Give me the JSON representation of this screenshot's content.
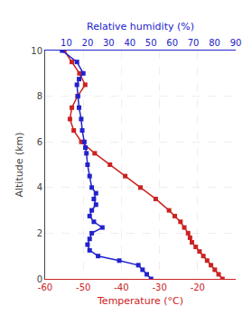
{
  "chart_data": {
    "type": "line",
    "xlabel": "Temperature (°C)",
    "x2label": "Relative humidity (%)",
    "ylabel": "Altitude (km)",
    "xlim": [
      -60,
      -10
    ],
    "xticks": [
      -60,
      -50,
      -40,
      -30,
      -20
    ],
    "x2lim": [
      0,
      90
    ],
    "x2ticks": [
      10,
      20,
      30,
      40,
      50,
      60,
      70,
      80,
      90
    ],
    "ylim": [
      0,
      10
    ],
    "yticks": [
      0,
      2,
      4,
      6,
      8,
      10
    ],
    "grid": true,
    "series": [
      {
        "color": "#2222cc",
        "marker": "square",
        "axis": "x2",
        "x": [
          50,
          48,
          46,
          44,
          35,
          25,
          21,
          20,
          21,
          22,
          27,
          23,
          21,
          22,
          24,
          23,
          24,
          22,
          21,
          20,
          19.5,
          19,
          18.5,
          17.5,
          17,
          16,
          15.5,
          15,
          16,
          18,
          15,
          8
        ],
        "values": [
          0.0,
          0.2,
          0.4,
          0.6,
          0.8,
          1.0,
          1.25,
          1.5,
          1.75,
          2.0,
          2.25,
          2.5,
          2.75,
          3.0,
          3.25,
          3.5,
          3.75,
          4.0,
          4.5,
          5.0,
          5.5,
          5.75,
          6.0,
          6.5,
          7.0,
          7.5,
          8.0,
          8.5,
          8.75,
          9.0,
          9.5,
          10.0
        ]
      },
      {
        "color": "#cc2222",
        "marker": "square",
        "axis": "x",
        "x": [
          -13.5,
          -14.5,
          -15.5,
          -16.5,
          -17.5,
          -18.5,
          -19.5,
          -20.5,
          -21.5,
          -22.0,
          -22.5,
          -23.5,
          -24.5,
          -26.0,
          -27.5,
          -31.0,
          -35.0,
          -39.0,
          -43.0,
          -47.0,
          -50.5,
          -52.5,
          -53.5,
          -53.0,
          -51.5,
          -49.5,
          -51.0,
          -53.0,
          -55.0
        ],
        "values": [
          0.0,
          0.2,
          0.4,
          0.6,
          0.8,
          1.0,
          1.2,
          1.4,
          1.6,
          1.8,
          2.0,
          2.25,
          2.5,
          2.75,
          3.0,
          3.5,
          4.0,
          4.5,
          5.0,
          5.5,
          6.0,
          6.5,
          7.0,
          7.5,
          8.0,
          8.5,
          9.0,
          9.5,
          10.0
        ]
      }
    ]
  }
}
